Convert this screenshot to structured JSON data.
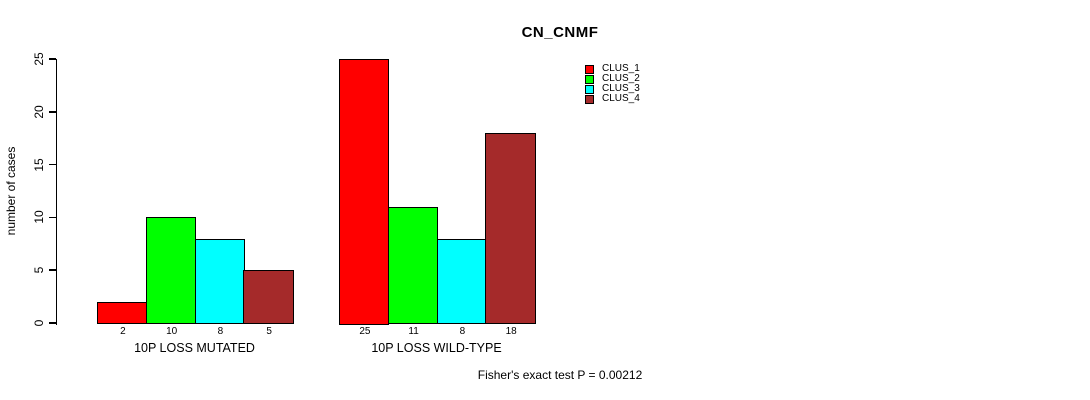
{
  "title": "CN_CNMF",
  "chart_data": {
    "type": "bar",
    "title": "CN_CNMF",
    "xlabel": "",
    "ylabel": "number of cases",
    "ylim": [
      0,
      25
    ],
    "yticks": [
      0,
      5,
      10,
      15,
      20,
      25
    ],
    "grid": false,
    "legend_position": "top-right-inside",
    "categories": [
      "10P LOSS MUTATED",
      "10P LOSS WILD-TYPE"
    ],
    "series": [
      {
        "name": "CLUS_1",
        "color": "#FF0000",
        "values": [
          2,
          25
        ]
      },
      {
        "name": "CLUS_2",
        "color": "#00FF00",
        "values": [
          10,
          11
        ]
      },
      {
        "name": "CLUS_3",
        "color": "#00FFFF",
        "values": [
          8,
          8
        ]
      },
      {
        "name": "CLUS_4",
        "color": "#A52A2A",
        "values": [
          5,
          18
        ]
      }
    ],
    "bar_value_labels": [
      [
        "2",
        "10",
        "8",
        "5"
      ],
      [
        "25",
        "11",
        "8",
        "18"
      ]
    ],
    "annotation": "Fisher's exact test P = 0.00212"
  },
  "colors": {
    "background": "#FFFFFF",
    "axis": "#000000",
    "text": "#000000"
  }
}
